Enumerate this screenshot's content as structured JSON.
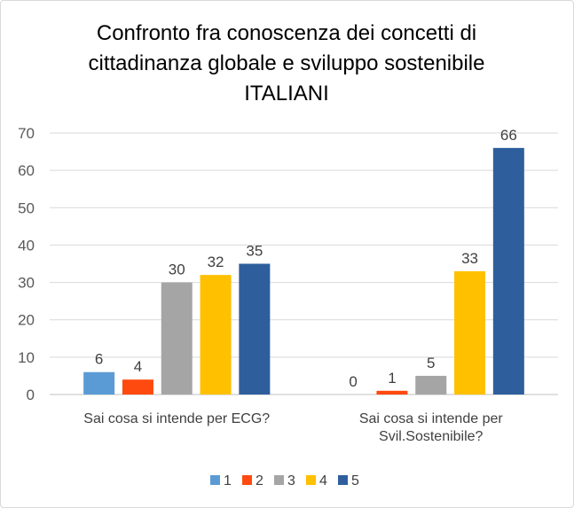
{
  "chart_data": {
    "type": "bar",
    "title": [
      "Confronto fra conoscenza dei concetti di",
      "cittadinanza globale e sviluppo sostenibile",
      "ITALIANI"
    ],
    "categories": [
      [
        "Sai cosa si intende per ECG?"
      ],
      [
        "Sai cosa si intende  per",
        "Svil.Sostenibile?"
      ]
    ],
    "series": [
      {
        "name": "1",
        "color": "#5B9BD5",
        "values": [
          6,
          0
        ]
      },
      {
        "name": "2",
        "color": "#FF4A0F",
        "values": [
          4,
          1
        ]
      },
      {
        "name": "3",
        "color": "#A5A5A5",
        "values": [
          30,
          5
        ]
      },
      {
        "name": "4",
        "color": "#FFC000",
        "values": [
          32,
          33
        ]
      },
      {
        "name": "5",
        "color": "#2E5F9C",
        "values": [
          35,
          66
        ]
      }
    ],
    "yticks": [
      0,
      10,
      20,
      30,
      40,
      50,
      60,
      70
    ],
    "ylim": [
      0,
      70
    ],
    "grid": true,
    "legend": "bottom",
    "xlabel": "",
    "ylabel": ""
  }
}
